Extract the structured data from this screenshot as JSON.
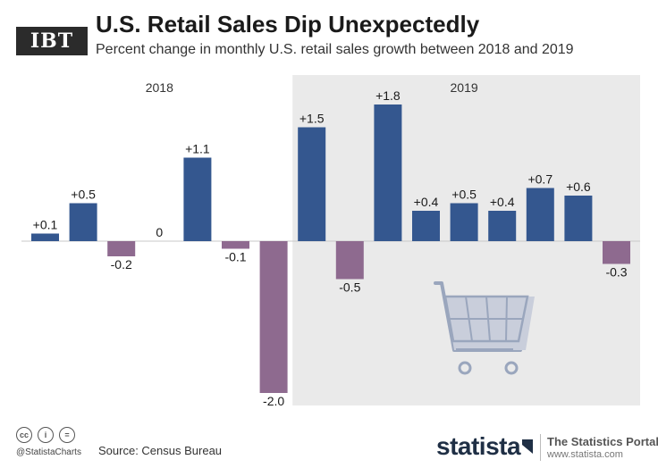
{
  "header": {
    "logo_text": "IBT",
    "title": "U.S. Retail Sales Dip Unexpectedly",
    "subtitle": "Percent change in monthly U.S. retail sales growth between 2018 and 2019"
  },
  "chart_data": {
    "type": "bar",
    "title": "U.S. Retail Sales Dip Unexpectedly",
    "subtitle": "Percent change in monthly U.S. retail sales growth between 2018 and 2019",
    "xlabel": "",
    "ylabel": "",
    "ylim": [
      -2.0,
      1.8
    ],
    "grid": false,
    "groups": [
      {
        "label": "2018",
        "start": 0,
        "end": 6
      },
      {
        "label": "2019",
        "start": 7,
        "end": 15
      }
    ],
    "values": [
      0.1,
      0.5,
      -0.2,
      0,
      1.1,
      -0.1,
      -2.0,
      1.5,
      -0.5,
      1.8,
      0.4,
      0.5,
      0.4,
      0.7,
      0.6,
      -0.3
    ],
    "labels": [
      "+0.1",
      "+0.5",
      "-0.2",
      "0",
      "+1.1",
      "-0.1",
      "-2.0",
      "+1.5",
      "-0.5",
      "+1.8",
      "+0.4",
      "+0.5",
      "+0.4",
      "+0.7",
      "+0.6",
      "-0.3"
    ],
    "colors": {
      "positive": "#34578f",
      "negative": "#8e6a8f",
      "highlight_bg": "#eaeaea",
      "cart": "#9aa6bd",
      "cart_fill": "#c9cedb"
    }
  },
  "footer": {
    "cc_icons": [
      "cc",
      "i",
      "="
    ],
    "handle": "@StatistaCharts",
    "source": "Source: Census Bureau",
    "brand": "statista",
    "portal_name": "The Statistics Portal",
    "portal_url": "www.statista.com"
  }
}
